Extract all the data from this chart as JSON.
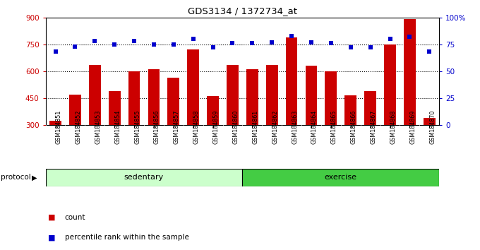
{
  "title": "GDS3134 / 1372734_at",
  "samples": [
    "GSM184851",
    "GSM184852",
    "GSM184853",
    "GSM184854",
    "GSM184855",
    "GSM184856",
    "GSM184857",
    "GSM184858",
    "GSM184859",
    "GSM184860",
    "GSM184861",
    "GSM184862",
    "GSM184863",
    "GSM184864",
    "GSM184865",
    "GSM184866",
    "GSM184867",
    "GSM184868",
    "GSM184869",
    "GSM184870"
  ],
  "counts": [
    325,
    470,
    635,
    490,
    600,
    610,
    565,
    720,
    460,
    635,
    610,
    635,
    790,
    630,
    600,
    465,
    490,
    750,
    890,
    340
  ],
  "percentiles": [
    68,
    73,
    78,
    75,
    78,
    75,
    75,
    80,
    72,
    76,
    76,
    77,
    83,
    77,
    76,
    72,
    72,
    80,
    82,
    68
  ],
  "group_labels": [
    "sedentary",
    "exercise"
  ],
  "group_counts": [
    10,
    10
  ],
  "group_colors": [
    "#ccffcc",
    "#44cc44"
  ],
  "bar_color": "#cc0000",
  "dot_color": "#0000cc",
  "tick_bg_color": "#cccccc",
  "plot_bg": "#ffffff",
  "ylim_left": [
    300,
    900
  ],
  "ylim_right": [
    0,
    100
  ],
  "yticks_left": [
    300,
    450,
    600,
    750,
    900
  ],
  "yticks_right": [
    0,
    25,
    50,
    75,
    100
  ],
  "hlines": [
    450,
    600,
    750
  ],
  "legend_items": [
    "count",
    "percentile rank within the sample"
  ],
  "legend_colors": [
    "#cc0000",
    "#0000cc"
  ]
}
